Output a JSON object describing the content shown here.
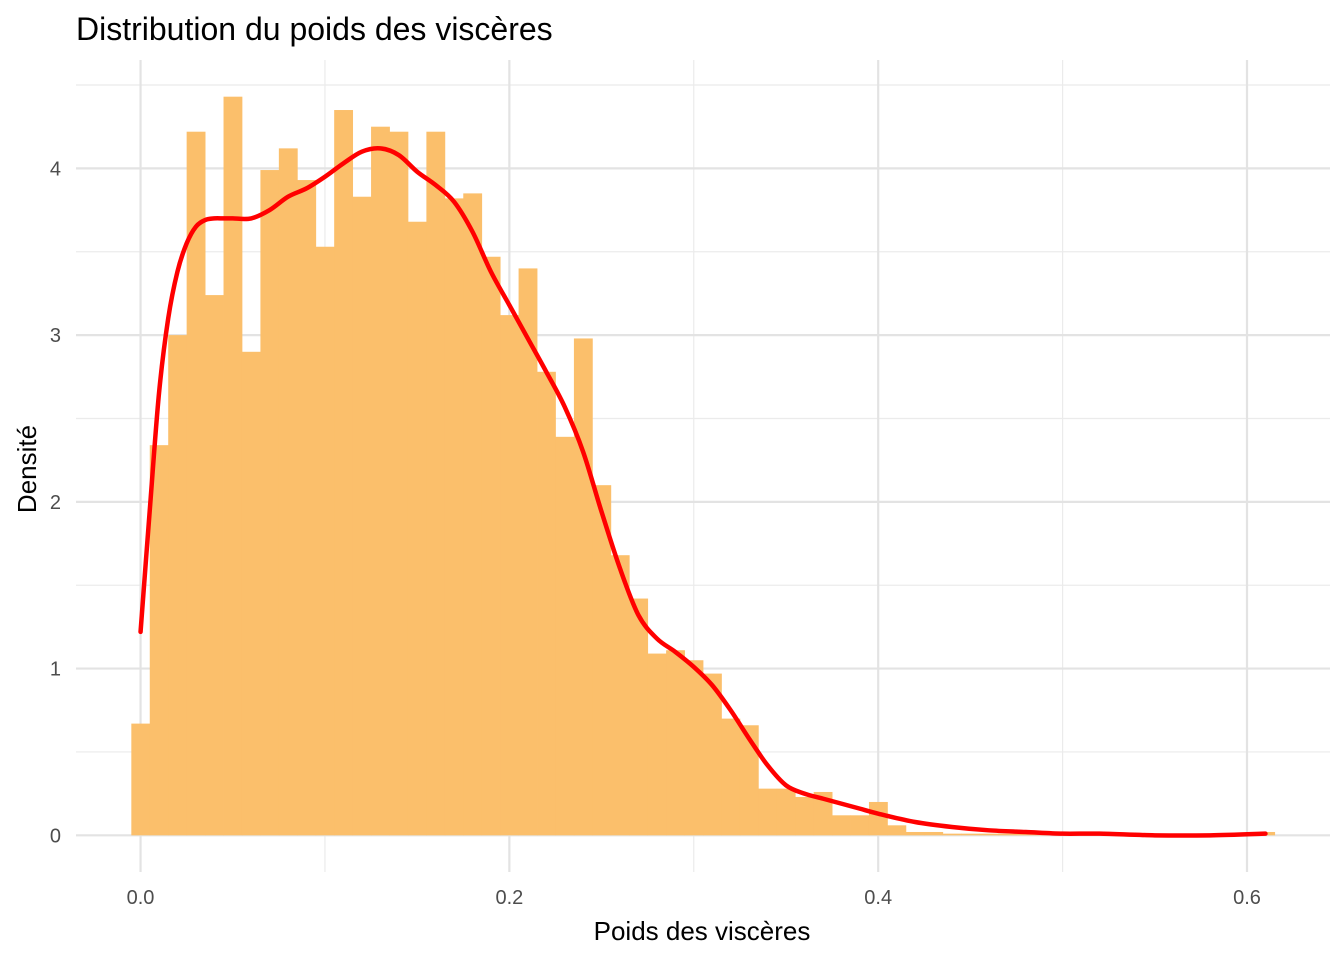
{
  "chart_data": {
    "type": "bar",
    "subtype": "histogram-with-density",
    "title": "Distribution du poids des viscères",
    "xlabel": "Poids des viscères",
    "ylabel": "Densité",
    "xlim": [
      -0.035,
      0.645
    ],
    "ylim": [
      -0.22,
      4.65
    ],
    "x_ticks": [
      0.0,
      0.2,
      0.4,
      0.6
    ],
    "x_tick_labels": [
      "0.0",
      "0.2",
      "0.4",
      "0.6"
    ],
    "y_ticks": [
      0,
      1,
      2,
      3,
      4
    ],
    "y_tick_labels": [
      "0",
      "1",
      "2",
      "3",
      "4"
    ],
    "grid": true,
    "legend": "none",
    "histogram": {
      "bin_width": 0.01,
      "first_bin_left": -0.005,
      "color": "#FBBF6B",
      "values": [
        0.67,
        2.34,
        3.0,
        4.22,
        3.24,
        4.43,
        2.9,
        3.99,
        4.12,
        3.93,
        3.53,
        4.35,
        3.83,
        4.25,
        4.22,
        3.68,
        4.22,
        3.82,
        3.85,
        3.47,
        3.12,
        3.4,
        2.78,
        2.39,
        2.98,
        2.1,
        1.68,
        1.42,
        1.09,
        1.11,
        1.05,
        0.97,
        0.7,
        0.66,
        0.28,
        0.28,
        0.23,
        0.26,
        0.12,
        0.12,
        0.2,
        0.06,
        0.02,
        0.02,
        0.01,
        0.01,
        0.01,
        0.01,
        0.01,
        0.01,
        0.01,
        0.01,
        0.01,
        0.01,
        0.01,
        0.01,
        0.01,
        0.01,
        0.01,
        0.01,
        0.01,
        0.02
      ]
    },
    "density": {
      "color": "#FF0000",
      "x": [
        0.0,
        0.005,
        0.01,
        0.015,
        0.02,
        0.025,
        0.03,
        0.035,
        0.04,
        0.045,
        0.05,
        0.06,
        0.07,
        0.08,
        0.09,
        0.1,
        0.11,
        0.12,
        0.13,
        0.14,
        0.15,
        0.16,
        0.17,
        0.18,
        0.19,
        0.2,
        0.21,
        0.22,
        0.23,
        0.24,
        0.25,
        0.26,
        0.27,
        0.28,
        0.29,
        0.3,
        0.31,
        0.32,
        0.33,
        0.34,
        0.35,
        0.36,
        0.37,
        0.38,
        0.39,
        0.4,
        0.42,
        0.44,
        0.46,
        0.48,
        0.5,
        0.52,
        0.55,
        0.58,
        0.61
      ],
      "y": [
        1.22,
        1.95,
        2.65,
        3.1,
        3.38,
        3.55,
        3.65,
        3.69,
        3.7,
        3.7,
        3.7,
        3.7,
        3.75,
        3.83,
        3.88,
        3.95,
        4.03,
        4.1,
        4.12,
        4.08,
        3.98,
        3.9,
        3.8,
        3.62,
        3.38,
        3.18,
        2.98,
        2.78,
        2.57,
        2.3,
        1.94,
        1.6,
        1.32,
        1.18,
        1.1,
        1.01,
        0.9,
        0.75,
        0.58,
        0.42,
        0.3,
        0.25,
        0.22,
        0.19,
        0.16,
        0.13,
        0.08,
        0.05,
        0.03,
        0.02,
        0.01,
        0.01,
        0.0,
        0.0,
        0.01
      ]
    }
  }
}
